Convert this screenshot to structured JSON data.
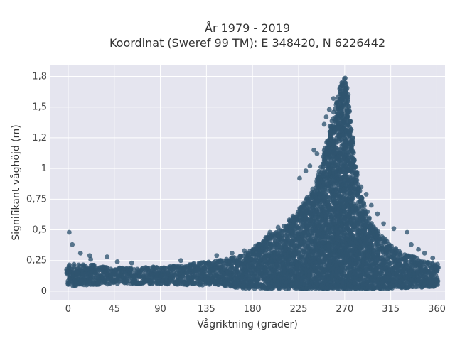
{
  "chart_data": {
    "type": "scatter",
    "title_line1": "År 1979 - 2019",
    "title_line2": "Koordinat (Sweref 99 TM): E 348420, N 6226442",
    "xlabel": "Vågriktning (grader)",
    "ylabel": "Signifikant våghöjd (m)",
    "xlim": [
      -18,
      368
    ],
    "ylim": [
      -0.07,
      1.84
    ],
    "x_ticks": [
      0,
      45,
      90,
      135,
      180,
      225,
      270,
      315,
      360
    ],
    "x_tick_labels": [
      "0",
      "45",
      "90",
      "135",
      "180",
      "225",
      "270",
      "315",
      "360"
    ],
    "y_ticks": [
      0,
      0.25,
      0.5,
      0.75,
      1,
      1.25,
      1.5,
      1.75
    ],
    "y_tick_labels": [
      "0",
      "0,25",
      "0,5",
      "0,75",
      "1",
      "1,2",
      "1,5",
      "1,8"
    ],
    "grid": true,
    "marker_color": "#2f5470",
    "background_color": "#e5e5ef",
    "envelope": {
      "direction_deg": [
        0,
        20,
        45,
        90,
        120,
        150,
        165,
        180,
        195,
        210,
        225,
        240,
        250,
        258,
        263,
        266,
        268,
        270,
        272,
        275,
        280,
        285,
        290,
        300,
        315,
        330,
        345,
        360
      ],
      "max_height_m": [
        0.22,
        0.22,
        0.19,
        0.2,
        0.22,
        0.26,
        0.28,
        0.34,
        0.45,
        0.52,
        0.66,
        0.85,
        1.12,
        1.42,
        1.6,
        1.68,
        1.74,
        1.74,
        1.68,
        1.42,
        1.05,
        0.82,
        0.68,
        0.5,
        0.38,
        0.3,
        0.26,
        0.22
      ],
      "min_height_m": [
        0.04,
        0.05,
        0.06,
        0.06,
        0.05,
        0.05,
        0.03,
        0.02,
        0.02,
        0.02,
        0.02,
        0.02,
        0.02,
        0.02,
        0.02,
        0.02,
        0.02,
        0.02,
        0.02,
        0.02,
        0.02,
        0.02,
        0.02,
        0.02,
        0.02,
        0.03,
        0.03,
        0.04
      ]
    },
    "outliers": [
      {
        "x": 1,
        "y": 0.48
      },
      {
        "x": 4,
        "y": 0.38
      },
      {
        "x": 12,
        "y": 0.31
      },
      {
        "x": 21,
        "y": 0.29
      },
      {
        "x": 22,
        "y": 0.26
      },
      {
        "x": 38,
        "y": 0.28
      },
      {
        "x": 48,
        "y": 0.24
      },
      {
        "x": 62,
        "y": 0.23
      },
      {
        "x": 110,
        "y": 0.25
      },
      {
        "x": 145,
        "y": 0.29
      },
      {
        "x": 160,
        "y": 0.31
      },
      {
        "x": 172,
        "y": 0.33
      },
      {
        "x": 183,
        "y": 0.37
      },
      {
        "x": 197,
        "y": 0.48
      },
      {
        "x": 205,
        "y": 0.52
      },
      {
        "x": 226,
        "y": 0.92
      },
      {
        "x": 232,
        "y": 0.98
      },
      {
        "x": 236,
        "y": 1.02
      },
      {
        "x": 240,
        "y": 1.15
      },
      {
        "x": 243,
        "y": 1.12
      },
      {
        "x": 250,
        "y": 1.36
      },
      {
        "x": 252,
        "y": 1.42
      },
      {
        "x": 255,
        "y": 1.48
      },
      {
        "x": 259,
        "y": 1.57
      },
      {
        "x": 278,
        "y": 1.25
      },
      {
        "x": 282,
        "y": 0.97
      },
      {
        "x": 286,
        "y": 0.85
      },
      {
        "x": 291,
        "y": 0.79
      },
      {
        "x": 296,
        "y": 0.7
      },
      {
        "x": 302,
        "y": 0.63
      },
      {
        "x": 308,
        "y": 0.55
      },
      {
        "x": 318,
        "y": 0.51
      },
      {
        "x": 331,
        "y": 0.48
      },
      {
        "x": 335,
        "y": 0.38
      },
      {
        "x": 342,
        "y": 0.34
      },
      {
        "x": 348,
        "y": 0.31
      },
      {
        "x": 356,
        "y": 0.27
      }
    ]
  }
}
